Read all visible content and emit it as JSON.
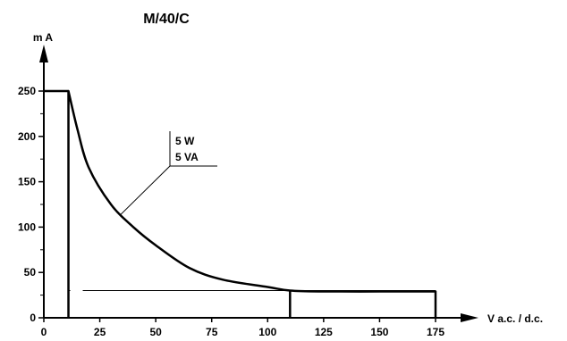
{
  "chart_data": {
    "type": "line",
    "title": "M/40/C",
    "xlabel": "V a.c. / d.c.",
    "ylabel": "m A",
    "xlim": [
      0,
      180
    ],
    "ylim": [
      0,
      270
    ],
    "x_ticks": [
      0,
      25,
      50,
      75,
      100,
      125,
      150,
      175
    ],
    "y_ticks": [
      0,
      50,
      100,
      150,
      200,
      250
    ],
    "grid": false,
    "legend": "none",
    "annotation": [
      "5 W",
      "5 VA"
    ],
    "series": [
      {
        "x": [
          11,
          11,
          15,
          20,
          30,
          40,
          50,
          65,
          80,
          100,
          110,
          125,
          150,
          175,
          175
        ],
        "y": [
          0,
          250,
          208,
          166,
          125,
          100,
          80,
          55,
          42,
          34,
          30,
          29,
          29,
          29,
          0
        ]
      }
    ],
    "reference_lines": [
      {
        "x": [
          11,
          175
        ],
        "y": [
          30,
          30
        ]
      },
      {
        "x": [
          110,
          110
        ],
        "y": [
          0,
          30
        ]
      }
    ]
  }
}
